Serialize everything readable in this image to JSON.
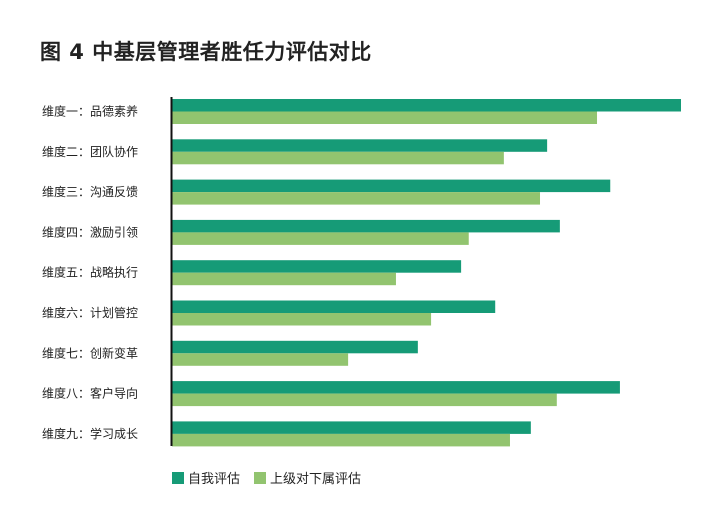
{
  "chart_data": {
    "type": "bar",
    "orientation": "horizontal",
    "title": "图 4  中基层管理者胜任力评估对比",
    "categories": [
      "维度一：品德素养",
      "维度二：团队协作",
      "维度三：沟通反馈",
      "维度四：激励引领",
      "维度五：战略执行",
      "维度六：计划管控",
      "维度七：创新变革",
      "维度八：客户导向",
      "维度九：学习成长"
    ],
    "series": [
      {
        "name": "自我评估",
        "color": "#169b77",
        "values": [
          100,
          73.7,
          86.1,
          76.2,
          56.8,
          63.5,
          48.3,
          88.0,
          70.5
        ]
      },
      {
        "name": "上级对下属评估",
        "color": "#92c46f",
        "values": [
          83.5,
          65.2,
          72.3,
          58.3,
          44.0,
          50.9,
          34.6,
          75.6,
          66.4
        ]
      }
    ],
    "xlim": [
      0,
      100
    ],
    "value_axis_shown": false,
    "grid": false,
    "legend_position": "bottom-left"
  }
}
